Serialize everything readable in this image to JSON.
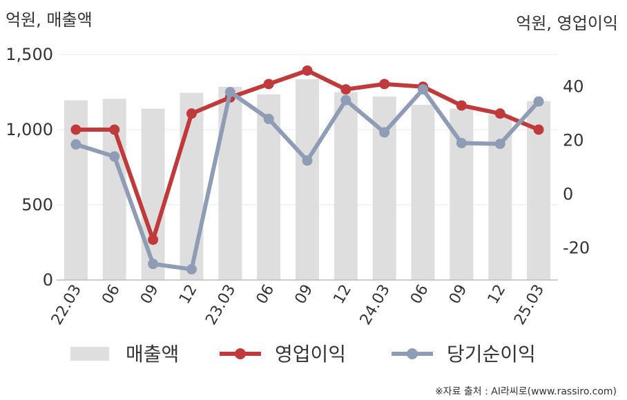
{
  "left_unit": "억원, 매출액",
  "right_unit": "억원, 영업이익",
  "source": "※자료 출처 : AI라씨로(www.rassiro.com)",
  "chart_data": {
    "type": "bar+line",
    "categories": [
      "22.03",
      "06",
      "09",
      "12",
      "23.03",
      "06",
      "09",
      "12",
      "24.03",
      "06",
      "09",
      "12",
      "25.03"
    ],
    "series": [
      {
        "name": "매출액",
        "kind": "bar",
        "axis": "left",
        "color": "#dedede",
        "values": [
          1195,
          1205,
          1140,
          1245,
          1285,
          1235,
          1335,
          1250,
          1220,
          1165,
          1140,
          1100,
          1190
        ]
      },
      {
        "name": "영업이익",
        "kind": "line",
        "axis": "right",
        "color": "#c0393b",
        "values": [
          24,
          24,
          -17,
          30,
          36,
          41,
          46,
          39,
          41,
          40,
          33,
          30,
          24
        ]
      },
      {
        "name": "당기순이익",
        "kind": "line",
        "axis": "right",
        "color": "#8f9cb5",
        "values": [
          18.5,
          14,
          -26,
          -28,
          38,
          28,
          12.5,
          35,
          23,
          39,
          19,
          18.7,
          34.5
        ]
      }
    ],
    "left_axis": {
      "ticks": [
        "0",
        "500",
        "1,000",
        "1,500"
      ],
      "tick_values": [
        0,
        500,
        1000,
        1500
      ],
      "range": [
        0,
        1500
      ]
    },
    "right_axis": {
      "ticks": [
        "-20",
        "0",
        "20",
        "40"
      ],
      "tick_values": [
        -20,
        0,
        20,
        40
      ],
      "range": [
        -32,
        52
      ]
    },
    "grid": true,
    "legend_position": "bottom"
  }
}
